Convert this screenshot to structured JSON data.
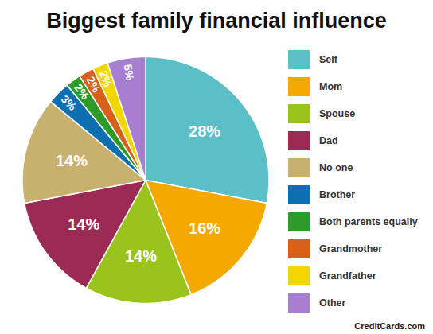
{
  "chart_data": {
    "type": "pie",
    "title": "Biggest family financial influence",
    "categories": [
      "Self",
      "Mom",
      "Spouse",
      "Dad",
      "No one",
      "Brother",
      "Both parents equally",
      "Grandmother",
      "Grandfather",
      "Other"
    ],
    "values": [
      28,
      16,
      14,
      14,
      14,
      3,
      2,
      2,
      2,
      5
    ],
    "value_labels": [
      "28%",
      "16%",
      "14%",
      "14%",
      "14%",
      "3%",
      "2%",
      "2%",
      "2%",
      "5%"
    ],
    "colors": [
      "#5bbfc8",
      "#f5a800",
      "#9ac31c",
      "#9b2a55",
      "#c8b06e",
      "#0d6eb0",
      "#2e9a2a",
      "#d8601a",
      "#f2d600",
      "#a77fd0"
    ],
    "data_labels": true,
    "legend": "right",
    "source": "CreditCards.com"
  }
}
